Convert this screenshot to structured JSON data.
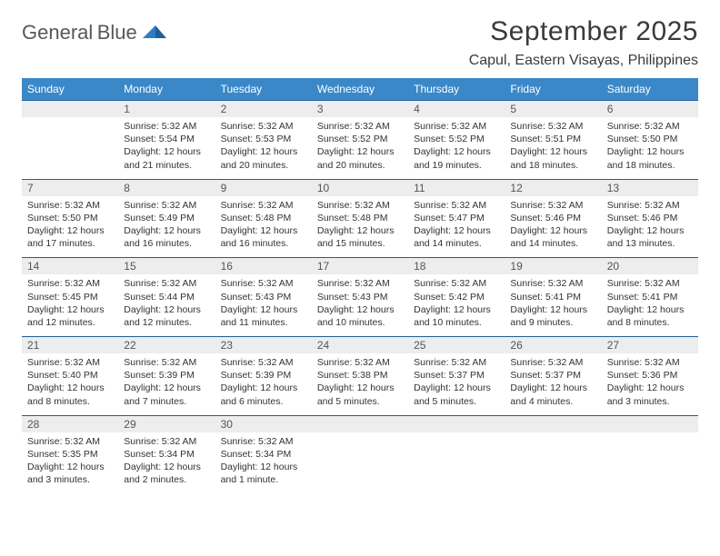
{
  "logo": {
    "word1": "General",
    "word2": "Blue"
  },
  "header": {
    "title": "September 2025",
    "location": "Capul, Eastern Visayas, Philippines"
  },
  "colors": {
    "headerBg": "#3a88c8",
    "headerText": "#ffffff",
    "dayNumBg": "#ededed",
    "rule": "#1f5f9a",
    "logoBlue": "#2f7ec2",
    "text": "#333333"
  },
  "dayNames": [
    "Sunday",
    "Monday",
    "Tuesday",
    "Wednesday",
    "Thursday",
    "Friday",
    "Saturday"
  ],
  "weeks": [
    {
      "nums": [
        "",
        "1",
        "2",
        "3",
        "4",
        "5",
        "6"
      ],
      "cells": [
        null,
        {
          "sunrise": "Sunrise: 5:32 AM",
          "sunset": "Sunset: 5:54 PM",
          "day1": "Daylight: 12 hours",
          "day2": "and 21 minutes."
        },
        {
          "sunrise": "Sunrise: 5:32 AM",
          "sunset": "Sunset: 5:53 PM",
          "day1": "Daylight: 12 hours",
          "day2": "and 20 minutes."
        },
        {
          "sunrise": "Sunrise: 5:32 AM",
          "sunset": "Sunset: 5:52 PM",
          "day1": "Daylight: 12 hours",
          "day2": "and 20 minutes."
        },
        {
          "sunrise": "Sunrise: 5:32 AM",
          "sunset": "Sunset: 5:52 PM",
          "day1": "Daylight: 12 hours",
          "day2": "and 19 minutes."
        },
        {
          "sunrise": "Sunrise: 5:32 AM",
          "sunset": "Sunset: 5:51 PM",
          "day1": "Daylight: 12 hours",
          "day2": "and 18 minutes."
        },
        {
          "sunrise": "Sunrise: 5:32 AM",
          "sunset": "Sunset: 5:50 PM",
          "day1": "Daylight: 12 hours",
          "day2": "and 18 minutes."
        }
      ]
    },
    {
      "nums": [
        "7",
        "8",
        "9",
        "10",
        "11",
        "12",
        "13"
      ],
      "cells": [
        {
          "sunrise": "Sunrise: 5:32 AM",
          "sunset": "Sunset: 5:50 PM",
          "day1": "Daylight: 12 hours",
          "day2": "and 17 minutes."
        },
        {
          "sunrise": "Sunrise: 5:32 AM",
          "sunset": "Sunset: 5:49 PM",
          "day1": "Daylight: 12 hours",
          "day2": "and 16 minutes."
        },
        {
          "sunrise": "Sunrise: 5:32 AM",
          "sunset": "Sunset: 5:48 PM",
          "day1": "Daylight: 12 hours",
          "day2": "and 16 minutes."
        },
        {
          "sunrise": "Sunrise: 5:32 AM",
          "sunset": "Sunset: 5:48 PM",
          "day1": "Daylight: 12 hours",
          "day2": "and 15 minutes."
        },
        {
          "sunrise": "Sunrise: 5:32 AM",
          "sunset": "Sunset: 5:47 PM",
          "day1": "Daylight: 12 hours",
          "day2": "and 14 minutes."
        },
        {
          "sunrise": "Sunrise: 5:32 AM",
          "sunset": "Sunset: 5:46 PM",
          "day1": "Daylight: 12 hours",
          "day2": "and 14 minutes."
        },
        {
          "sunrise": "Sunrise: 5:32 AM",
          "sunset": "Sunset: 5:46 PM",
          "day1": "Daylight: 12 hours",
          "day2": "and 13 minutes."
        }
      ]
    },
    {
      "nums": [
        "14",
        "15",
        "16",
        "17",
        "18",
        "19",
        "20"
      ],
      "cells": [
        {
          "sunrise": "Sunrise: 5:32 AM",
          "sunset": "Sunset: 5:45 PM",
          "day1": "Daylight: 12 hours",
          "day2": "and 12 minutes."
        },
        {
          "sunrise": "Sunrise: 5:32 AM",
          "sunset": "Sunset: 5:44 PM",
          "day1": "Daylight: 12 hours",
          "day2": "and 12 minutes."
        },
        {
          "sunrise": "Sunrise: 5:32 AM",
          "sunset": "Sunset: 5:43 PM",
          "day1": "Daylight: 12 hours",
          "day2": "and 11 minutes."
        },
        {
          "sunrise": "Sunrise: 5:32 AM",
          "sunset": "Sunset: 5:43 PM",
          "day1": "Daylight: 12 hours",
          "day2": "and 10 minutes."
        },
        {
          "sunrise": "Sunrise: 5:32 AM",
          "sunset": "Sunset: 5:42 PM",
          "day1": "Daylight: 12 hours",
          "day2": "and 10 minutes."
        },
        {
          "sunrise": "Sunrise: 5:32 AM",
          "sunset": "Sunset: 5:41 PM",
          "day1": "Daylight: 12 hours",
          "day2": "and 9 minutes."
        },
        {
          "sunrise": "Sunrise: 5:32 AM",
          "sunset": "Sunset: 5:41 PM",
          "day1": "Daylight: 12 hours",
          "day2": "and 8 minutes."
        }
      ]
    },
    {
      "nums": [
        "21",
        "22",
        "23",
        "24",
        "25",
        "26",
        "27"
      ],
      "cells": [
        {
          "sunrise": "Sunrise: 5:32 AM",
          "sunset": "Sunset: 5:40 PM",
          "day1": "Daylight: 12 hours",
          "day2": "and 8 minutes."
        },
        {
          "sunrise": "Sunrise: 5:32 AM",
          "sunset": "Sunset: 5:39 PM",
          "day1": "Daylight: 12 hours",
          "day2": "and 7 minutes."
        },
        {
          "sunrise": "Sunrise: 5:32 AM",
          "sunset": "Sunset: 5:39 PM",
          "day1": "Daylight: 12 hours",
          "day2": "and 6 minutes."
        },
        {
          "sunrise": "Sunrise: 5:32 AM",
          "sunset": "Sunset: 5:38 PM",
          "day1": "Daylight: 12 hours",
          "day2": "and 5 minutes."
        },
        {
          "sunrise": "Sunrise: 5:32 AM",
          "sunset": "Sunset: 5:37 PM",
          "day1": "Daylight: 12 hours",
          "day2": "and 5 minutes."
        },
        {
          "sunrise": "Sunrise: 5:32 AM",
          "sunset": "Sunset: 5:37 PM",
          "day1": "Daylight: 12 hours",
          "day2": "and 4 minutes."
        },
        {
          "sunrise": "Sunrise: 5:32 AM",
          "sunset": "Sunset: 5:36 PM",
          "day1": "Daylight: 12 hours",
          "day2": "and 3 minutes."
        }
      ]
    },
    {
      "nums": [
        "28",
        "29",
        "30",
        "",
        "",
        "",
        ""
      ],
      "cells": [
        {
          "sunrise": "Sunrise: 5:32 AM",
          "sunset": "Sunset: 5:35 PM",
          "day1": "Daylight: 12 hours",
          "day2": "and 3 minutes."
        },
        {
          "sunrise": "Sunrise: 5:32 AM",
          "sunset": "Sunset: 5:34 PM",
          "day1": "Daylight: 12 hours",
          "day2": "and 2 minutes."
        },
        {
          "sunrise": "Sunrise: 5:32 AM",
          "sunset": "Sunset: 5:34 PM",
          "day1": "Daylight: 12 hours",
          "day2": "and 1 minute."
        },
        null,
        null,
        null,
        null
      ]
    }
  ]
}
